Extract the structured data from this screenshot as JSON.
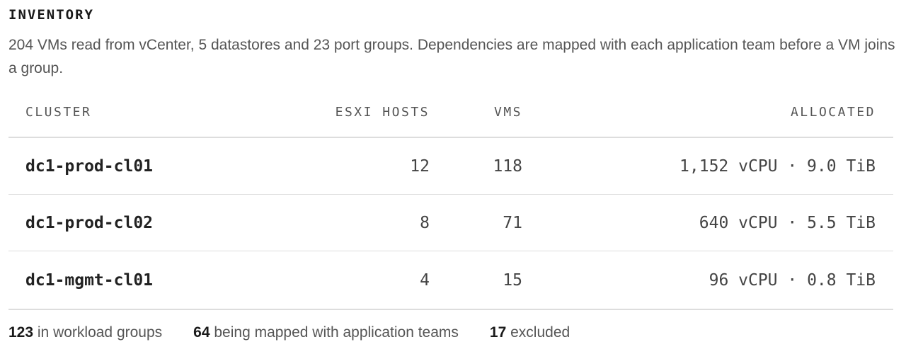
{
  "header": {
    "title": "INVENTORY",
    "description": "204 VMs read from vCenter, 5 datastores and 23 port groups. Dependencies are mapped with each application team before a VM joins a group."
  },
  "table": {
    "columns": [
      "CLUSTER",
      "ESXI HOSTS",
      "VMS",
      "ALLOCATED"
    ],
    "rows": [
      [
        "dc1-prod-cl01",
        "12",
        "118",
        "1,152 vCPU · 9.0 TiB"
      ],
      [
        "dc1-prod-cl02",
        "8",
        "71",
        "640 vCPU · 5.5 TiB"
      ],
      [
        "dc1-mgmt-cl01",
        "4",
        "15",
        "96 vCPU · 0.8 TiB"
      ]
    ]
  },
  "footer": {
    "stats": [
      {
        "value": "123",
        "label": "in workload groups"
      },
      {
        "value": "64",
        "label": "being mapped with application teams"
      },
      {
        "value": "17",
        "label": "excluded"
      }
    ]
  }
}
